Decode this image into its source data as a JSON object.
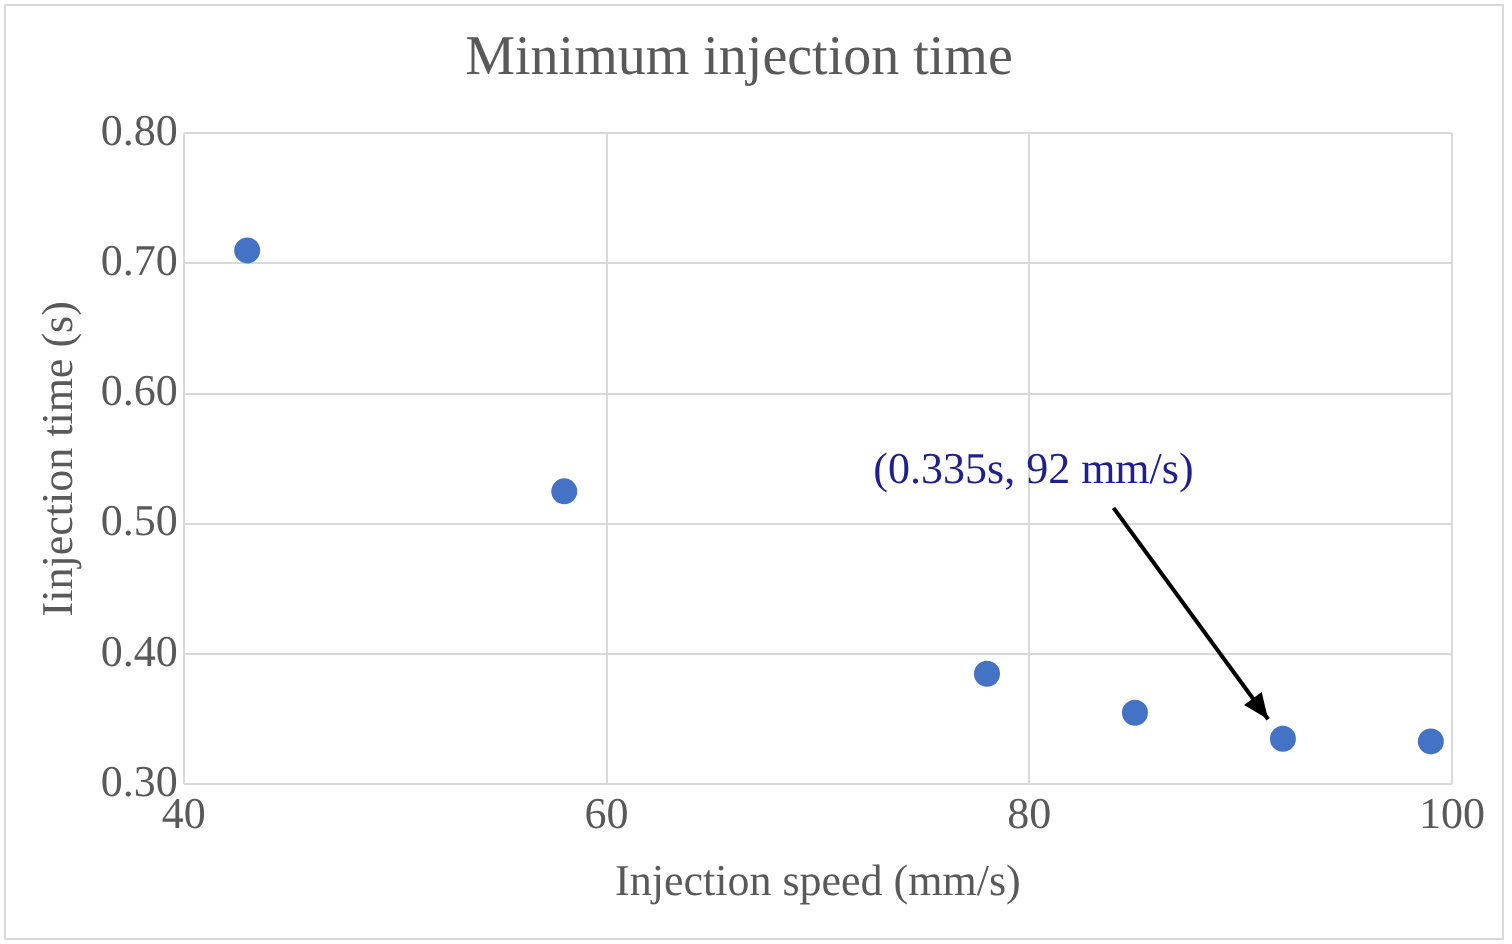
{
  "chart_data": {
    "type": "scatter",
    "title": "Minimum injection time",
    "xlabel": "Injection speed (mm/s)",
    "ylabel": "Iinjection time (s)",
    "x": [
      43,
      58,
      78,
      85,
      92,
      99
    ],
    "series": [
      {
        "color": "#4472c4",
        "values": [
          0.71,
          0.525,
          0.385,
          0.355,
          0.335,
          0.333
        ]
      }
    ],
    "xlim": [
      40,
      100
    ],
    "xticks": [
      40,
      60,
      80,
      100
    ],
    "ylim": [
      0.3,
      0.8
    ],
    "yticks": [
      {
        "value": 0.3,
        "label": "0.30"
      },
      {
        "value": 0.4,
        "label": "0.40"
      },
      {
        "value": 0.5,
        "label": "0.50"
      },
      {
        "value": 0.6,
        "label": "0.60"
      },
      {
        "value": 0.7,
        "label": "0.70"
      },
      {
        "value": 0.8,
        "label": "0.80"
      }
    ],
    "grid": true,
    "legend": false,
    "marker": "circle",
    "annotations": [
      "(0.335s, 92 mm/s)"
    ]
  }
}
